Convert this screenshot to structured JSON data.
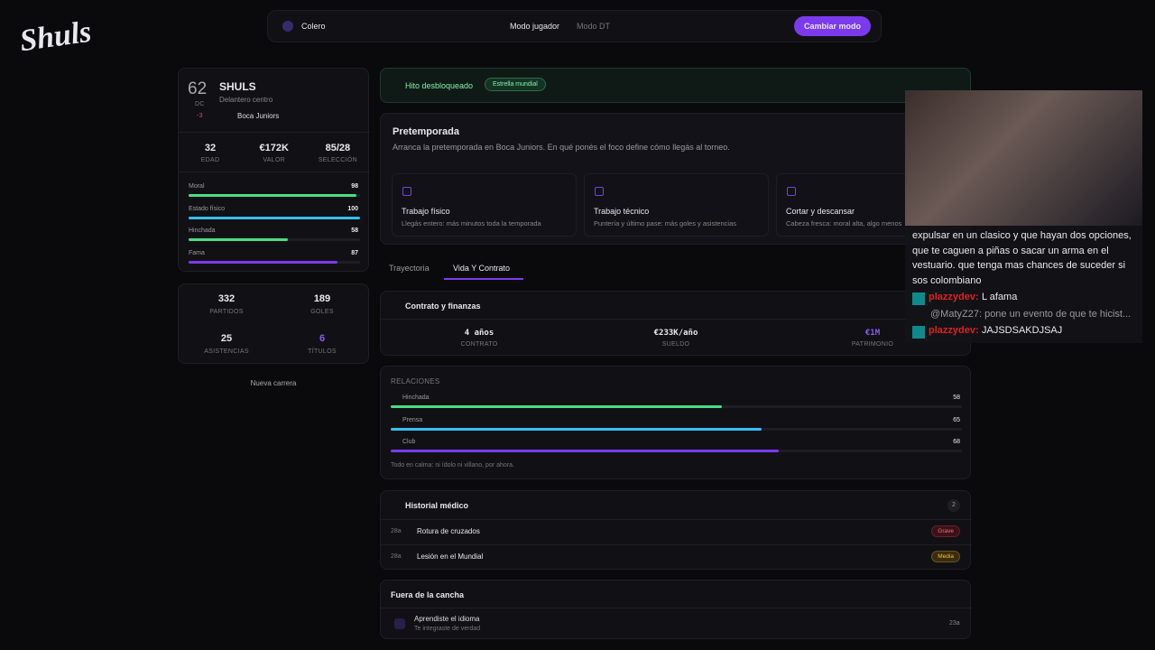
{
  "logo": "Shuls",
  "nav": {
    "user": "Colero",
    "modes": [
      "Modo jugador",
      "Modo DT"
    ],
    "button": "Cambiar modo"
  },
  "player": {
    "rating": 62,
    "position": "DC",
    "delta": -3,
    "name": "SHULS",
    "role": "Delantero centro",
    "club": "Boca Juniors",
    "stats": [
      {
        "value": 32,
        "label": "EDAD"
      },
      {
        "value": "€172K",
        "label": "VALOR"
      },
      {
        "value": "85/28",
        "label": "SELECCIÓN"
      }
    ],
    "bars": [
      {
        "label": "Moral",
        "value": 98,
        "color": "#4ade80"
      },
      {
        "label": "Estado físico",
        "value": 100,
        "color": "#38bdf8"
      },
      {
        "label": "Hinchada",
        "value": 58,
        "color": "#4ade80"
      },
      {
        "label": "Fama",
        "value": 87,
        "color": "#7c3aed"
      }
    ]
  },
  "career": [
    {
      "value": 332,
      "label": "PARTIDOS"
    },
    {
      "value": 189,
      "label": "GOLES"
    },
    {
      "value": 25,
      "label": "ASISTENCIAS"
    },
    {
      "value": 6,
      "label": "TÍTULOS"
    }
  ],
  "new_career": "Nueva carrera",
  "milestone": {
    "title": "Hito desbloqueado",
    "badge": "Estrella mundial"
  },
  "preseason": {
    "title": "Pretemporada",
    "description": "Arranca la pretemporada en Boca Juniors. En qué ponés el foco define cómo llegás al torneo.",
    "options": [
      {
        "title": "Trabajo físico",
        "desc": "Llegás entero: más minutos toda la temporada"
      },
      {
        "title": "Trabajo técnico",
        "desc": "Puntería y último pase: más goles y asistencias"
      },
      {
        "title": "Cortar y descansar",
        "desc": "Cabeza fresca: moral alta, algo menos"
      }
    ]
  },
  "tabs": [
    "Trayectoria",
    "Vida Y Contrato"
  ],
  "contract": {
    "title": "Contrato y finanzas",
    "items": [
      {
        "value": "4 años",
        "label": "CONTRATO"
      },
      {
        "value": "€233K/año",
        "label": "SUELDO"
      },
      {
        "value": "€1M",
        "label": "PATRIMONIO"
      }
    ]
  },
  "relations": {
    "title": "RELACIONES",
    "items": [
      {
        "label": "Hinchada",
        "value": 58,
        "color": "#4ade80"
      },
      {
        "label": "Prensa",
        "value": 65,
        "color": "#38bdf8"
      },
      {
        "label": "Club",
        "value": 68,
        "color": "#7c3aed"
      }
    ],
    "note": "Todo en calma: ni ídolo ni villano, por ahora."
  },
  "medical": {
    "title": "Historial médico",
    "count": 2,
    "items": [
      {
        "age": "28a",
        "name": "Rotura de cruzados",
        "severity": "Grave"
      },
      {
        "age": "28a",
        "name": "Lesión en el Mundial",
        "severity": "Media"
      }
    ]
  },
  "off_field": {
    "title": "Fuera de la cancha",
    "items": [
      {
        "title": "Aprendiste el idioma",
        "desc": "Te integraste de verdad",
        "age": "23a"
      }
    ]
  },
  "chat": {
    "intro": "expulsar en un clasico y que hayan dos opciones, que te caguen a piñas o sacar un arma en el vestuario. que tenga mas chances de suceder si sos colombiano",
    "messages": [
      {
        "user": "plazzydev:",
        "text": "L afama"
      },
      {
        "reply": "@MatyZ27: pone un evento de que te hicist..."
      },
      {
        "user": "plazzydev:",
        "text": "JAJSDSAKDJSAJ"
      }
    ]
  }
}
